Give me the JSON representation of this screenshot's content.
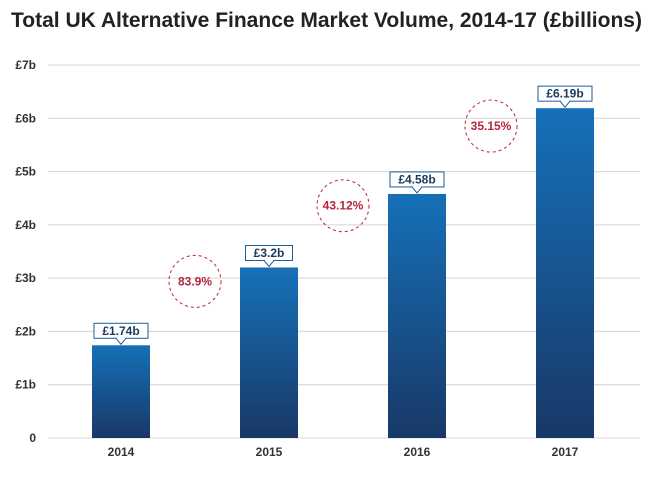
{
  "chart_data": {
    "type": "bar",
    "title": "Total UK Alternative Finance Market Volume, 2014-17 (£billions)",
    "categories": [
      "2014",
      "2015",
      "2016",
      "2017"
    ],
    "values": [
      1.74,
      3.2,
      4.58,
      6.19
    ],
    "data_labels": [
      "£1.74b",
      "£3.2b",
      "£4.58b",
      "£6.19b"
    ],
    "growth_annotations": [
      "83.9%",
      "43.12%",
      "35.15%"
    ],
    "y_ticks": [
      0,
      1,
      2,
      3,
      4,
      5,
      6,
      7
    ],
    "y_tick_labels": [
      "0",
      "£1b",
      "£2b",
      "£3b",
      "£4b",
      "£5b",
      "£6b",
      "£7b"
    ],
    "ylim": [
      0,
      7
    ],
    "grid": true,
    "colors": {
      "bar_top": "#1670b8",
      "bar_bottom": "#183867",
      "label_border": "#1a5e9c",
      "growth": "#b5253c",
      "grid": "#d4d4d4"
    }
  }
}
